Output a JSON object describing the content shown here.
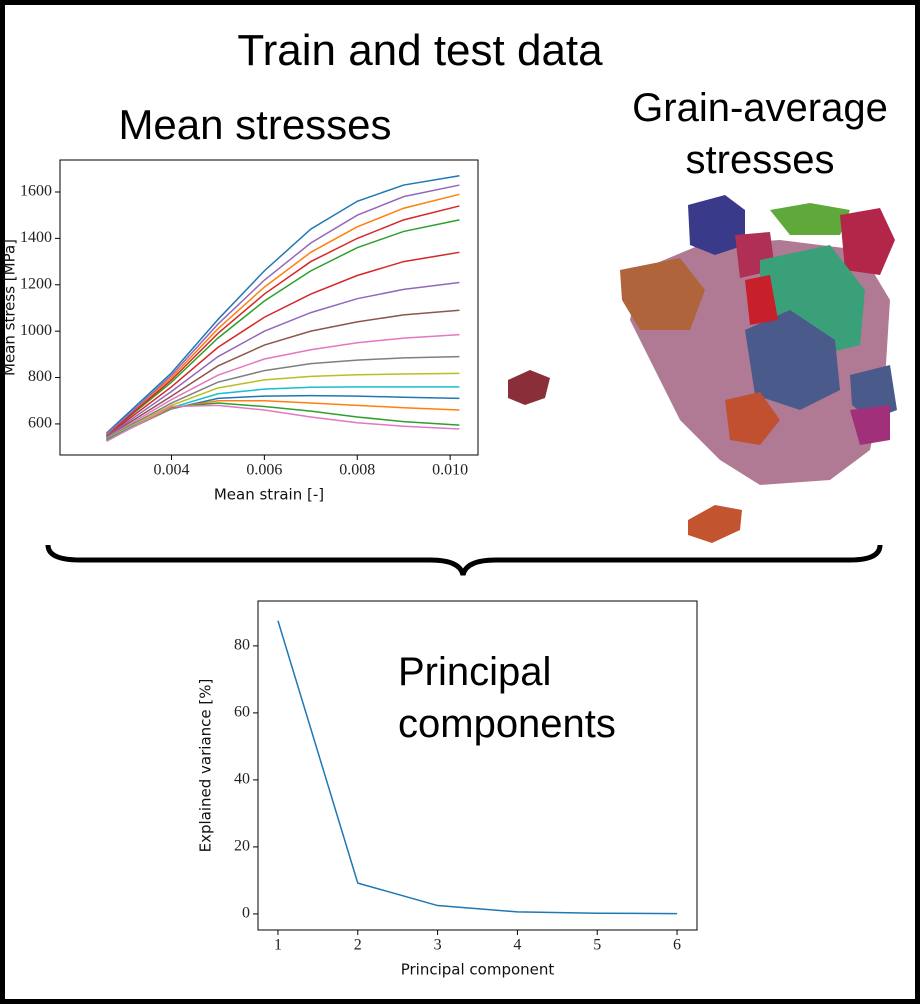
{
  "title": "Train and test data",
  "grain_label": "Grain-average stresses",
  "chart_data": [
    {
      "type": "line",
      "title": "Mean stresses",
      "xlabel": "Mean strain [-]",
      "ylabel": "Mean stress [MPa]",
      "x": [
        0.0026,
        0.004,
        0.005,
        0.006,
        0.007,
        0.008,
        0.009,
        0.0102
      ],
      "xlim": [
        0.0016,
        0.0106
      ],
      "ylim": [
        466,
        1738
      ],
      "xticks": [
        0.004,
        0.006,
        0.008,
        {
          "value": 0.01,
          "label": "0.010"
        }
      ],
      "yticks": [
        600,
        800,
        1000,
        1200,
        1400,
        1600
      ],
      "series": [
        {
          "color": "#1f77b4",
          "values": [
            560,
            820,
            1050,
            1260,
            1440,
            1560,
            1630,
            1670
          ]
        },
        {
          "color": "#ff7f0e",
          "values": [
            555,
            800,
            1010,
            1190,
            1340,
            1450,
            1530,
            1590
          ]
        },
        {
          "color": "#2ca02c",
          "values": [
            550,
            780,
            970,
            1130,
            1260,
            1360,
            1430,
            1480
          ]
        },
        {
          "color": "#d62728",
          "values": [
            548,
            760,
            930,
            1060,
            1160,
            1240,
            1300,
            1340
          ]
        },
        {
          "color": "#9467bd",
          "values": [
            545,
            740,
            890,
            1000,
            1080,
            1140,
            1180,
            1210
          ]
        },
        {
          "color": "#8c564b",
          "values": [
            543,
            720,
            850,
            940,
            1000,
            1040,
            1070,
            1090
          ]
        },
        {
          "color": "#e377c2",
          "values": [
            540,
            705,
            810,
            880,
            920,
            950,
            970,
            985
          ]
        },
        {
          "color": "#7f7f7f",
          "values": [
            538,
            690,
            780,
            830,
            860,
            875,
            885,
            890
          ]
        },
        {
          "color": "#bcbd22",
          "values": [
            536,
            680,
            755,
            790,
            805,
            812,
            815,
            818
          ]
        },
        {
          "color": "#17becf",
          "values": [
            534,
            670,
            730,
            750,
            758,
            760,
            760,
            760
          ]
        },
        {
          "color": "#1f77b4",
          "values": [
            532,
            665,
            710,
            720,
            722,
            720,
            715,
            710
          ]
        },
        {
          "color": "#ff7f0e",
          "values": [
            530,
            668,
            700,
            700,
            690,
            680,
            670,
            660
          ]
        },
        {
          "color": "#2ca02c",
          "values": [
            528,
            672,
            690,
            675,
            655,
            630,
            610,
            595
          ]
        },
        {
          "color": "#e377c2",
          "values": [
            525,
            675,
            680,
            660,
            630,
            605,
            590,
            578
          ]
        },
        {
          "color": "#d62728",
          "values": [
            550,
            790,
            990,
            1160,
            1300,
            1400,
            1480,
            1540
          ]
        },
        {
          "color": "#9467bd",
          "values": [
            552,
            810,
            1030,
            1220,
            1380,
            1500,
            1580,
            1630
          ]
        }
      ]
    },
    {
      "type": "line",
      "annotation": "Principal components",
      "xlabel": "Principal component",
      "ylabel": "Explained variance [%]",
      "x": [
        1,
        2,
        3,
        4,
        5,
        6
      ],
      "values": [
        87.5,
        9.2,
        2.5,
        0.6,
        0.2,
        0.1
      ],
      "color": "#1f77b4",
      "xlim": [
        0.75,
        6.25
      ],
      "ylim": [
        -4.8,
        93.4
      ],
      "xticks": [
        1,
        2,
        3,
        4,
        5,
        6
      ],
      "yticks": [
        0,
        20,
        40,
        60,
        80
      ]
    }
  ]
}
